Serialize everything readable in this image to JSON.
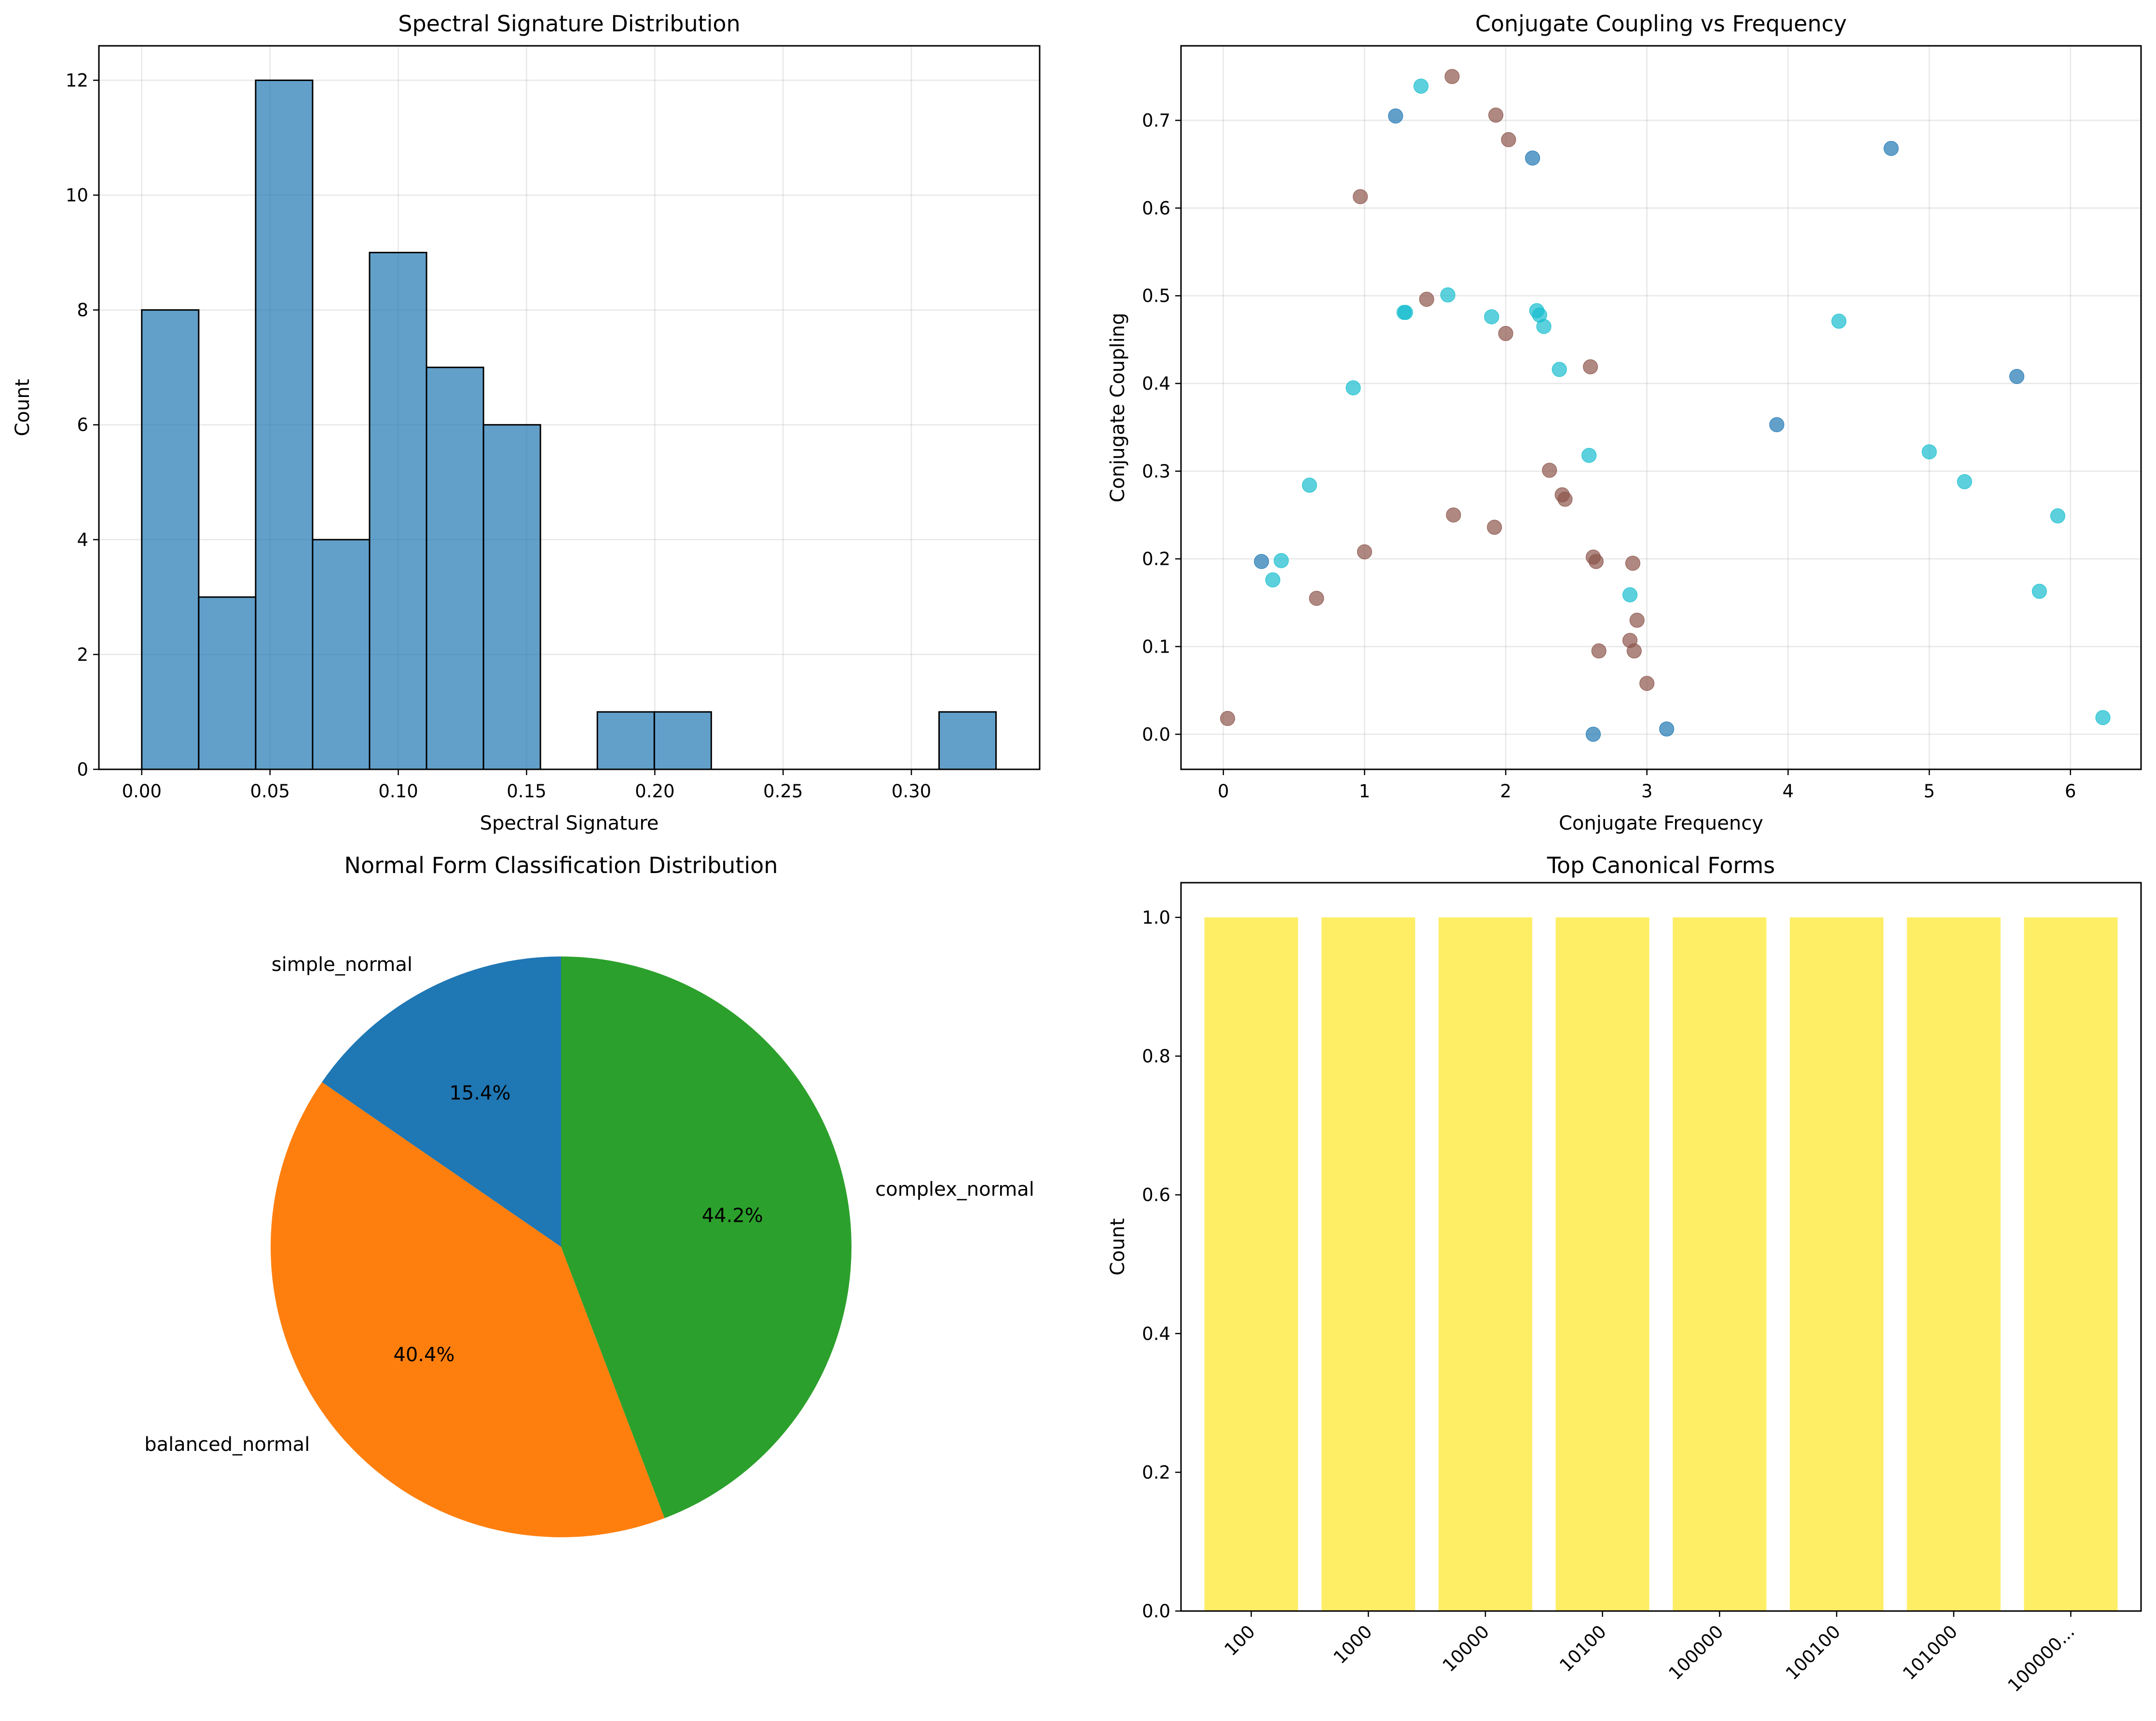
{
  "chart_data": [
    {
      "type": "bar",
      "subtype": "histogram",
      "title": "Spectral Signature Distribution",
      "xlabel": "Spectral Signature",
      "ylabel": "Count",
      "bin_edges": [
        0.0,
        0.0222,
        0.0444,
        0.0666,
        0.0888,
        0.111,
        0.1332,
        0.1554,
        0.1776,
        0.1998,
        0.222,
        0.2442,
        0.2664,
        0.2886,
        0.3108,
        0.333
      ],
      "values": [
        8,
        3,
        12,
        4,
        9,
        7,
        6,
        0,
        1,
        1,
        0,
        0,
        0,
        0,
        1
      ],
      "xlim": [
        -0.0167,
        0.35
      ],
      "ylim": [
        0,
        12.6
      ],
      "xticks": [
        0.0,
        0.05,
        0.1,
        0.15,
        0.2,
        0.25,
        0.3
      ],
      "xtick_labels": [
        "0.00",
        "0.05",
        "0.10",
        "0.15",
        "0.20",
        "0.25",
        "0.30"
      ],
      "yticks": [
        0,
        2,
        4,
        6,
        8,
        10,
        12
      ],
      "ytick_labels": [
        "0",
        "2",
        "4",
        "6",
        "8",
        "10",
        "12"
      ],
      "color": "#1f77b4",
      "grid": true
    },
    {
      "type": "scatter",
      "title": "Conjugate Coupling vs Frequency",
      "xlabel": "Conjugate Frequency",
      "ylabel": "Conjugate Coupling",
      "xlim": [
        -0.3,
        6.5
      ],
      "ylim": [
        -0.04,
        0.785
      ],
      "xticks": [
        0,
        1,
        2,
        3,
        4,
        5,
        6
      ],
      "xtick_labels": [
        "0",
        "1",
        "2",
        "3",
        "4",
        "5",
        "6"
      ],
      "yticks": [
        0.0,
        0.1,
        0.2,
        0.3,
        0.4,
        0.5,
        0.6,
        0.7
      ],
      "ytick_labels": [
        "0.0",
        "0.1",
        "0.2",
        "0.3",
        "0.4",
        "0.5",
        "0.6",
        "0.7"
      ],
      "grid": true,
      "series": [
        {
          "name": "simple_normal",
          "color": "#1f77b4",
          "points": [
            [
              1.22,
              0.705
            ],
            [
              2.19,
              0.657
            ],
            [
              4.73,
              0.668
            ],
            [
              5.62,
              0.408
            ],
            [
              3.92,
              0.353
            ],
            [
              0.27,
              0.197
            ],
            [
              2.62,
              0.0
            ],
            [
              3.14,
              0.006
            ]
          ]
        },
        {
          "name": "balanced_normal",
          "color": "#8c564b",
          "points": [
            [
              1.62,
              0.75
            ],
            [
              1.93,
              0.706
            ],
            [
              2.02,
              0.678
            ],
            [
              0.97,
              0.613
            ],
            [
              1.44,
              0.496
            ],
            [
              2.0,
              0.457
            ],
            [
              2.6,
              0.419
            ],
            [
              2.31,
              0.301
            ],
            [
              2.4,
              0.273
            ],
            [
              2.42,
              0.268
            ],
            [
              1.63,
              0.25
            ],
            [
              1.92,
              0.236
            ],
            [
              1.0,
              0.208
            ],
            [
              2.62,
              0.202
            ],
            [
              2.64,
              0.197
            ],
            [
              2.9,
              0.195
            ],
            [
              0.66,
              0.155
            ],
            [
              2.93,
              0.13
            ],
            [
              2.88,
              0.107
            ],
            [
              2.66,
              0.095
            ],
            [
              2.91,
              0.095
            ],
            [
              3.0,
              0.058
            ],
            [
              0.03,
              0.018
            ]
          ]
        },
        {
          "name": "complex_normal",
          "color": "#17becf",
          "points": [
            [
              1.4,
              0.739
            ],
            [
              1.59,
              0.501
            ],
            [
              1.28,
              0.481
            ],
            [
              1.29,
              0.481
            ],
            [
              2.22,
              0.483
            ],
            [
              2.24,
              0.478
            ],
            [
              1.9,
              0.476
            ],
            [
              2.27,
              0.465
            ],
            [
              4.36,
              0.471
            ],
            [
              2.38,
              0.416
            ],
            [
              0.92,
              0.395
            ],
            [
              5.0,
              0.322
            ],
            [
              2.59,
              0.318
            ],
            [
              0.61,
              0.284
            ],
            [
              5.25,
              0.288
            ],
            [
              5.91,
              0.249
            ],
            [
              0.41,
              0.198
            ],
            [
              0.35,
              0.176
            ],
            [
              2.88,
              0.159
            ],
            [
              5.78,
              0.163
            ],
            [
              6.23,
              0.019
            ]
          ]
        }
      ]
    },
    {
      "type": "pie",
      "title": "Normal Form Classification Distribution",
      "labels": [
        "simple_normal",
        "balanced_normal",
        "complex_normal"
      ],
      "values": [
        15.4,
        40.4,
        44.2
      ],
      "pct_labels": [
        "15.4%",
        "40.4%",
        "44.2%"
      ],
      "colors": [
        "#1f77b4",
        "#ff7f0e",
        "#2ca02c"
      ],
      "start_angle_deg": 90,
      "direction": "counterclockwise"
    },
    {
      "type": "bar",
      "title": "Top Canonical Forms",
      "xlabel": "",
      "ylabel": "Count",
      "categories": [
        "100",
        "1000",
        "10000",
        "10100",
        "100000",
        "100100",
        "101000",
        "100000..."
      ],
      "values": [
        1,
        1,
        1,
        1,
        1,
        1,
        1,
        1
      ],
      "ylim": [
        0,
        1.05
      ],
      "yticks": [
        0.0,
        0.2,
        0.4,
        0.6,
        0.8,
        1.0
      ],
      "ytick_labels": [
        "0.0",
        "0.2",
        "0.4",
        "0.6",
        "0.8",
        "1.0"
      ],
      "color": "#fde725",
      "grid": false
    }
  ]
}
